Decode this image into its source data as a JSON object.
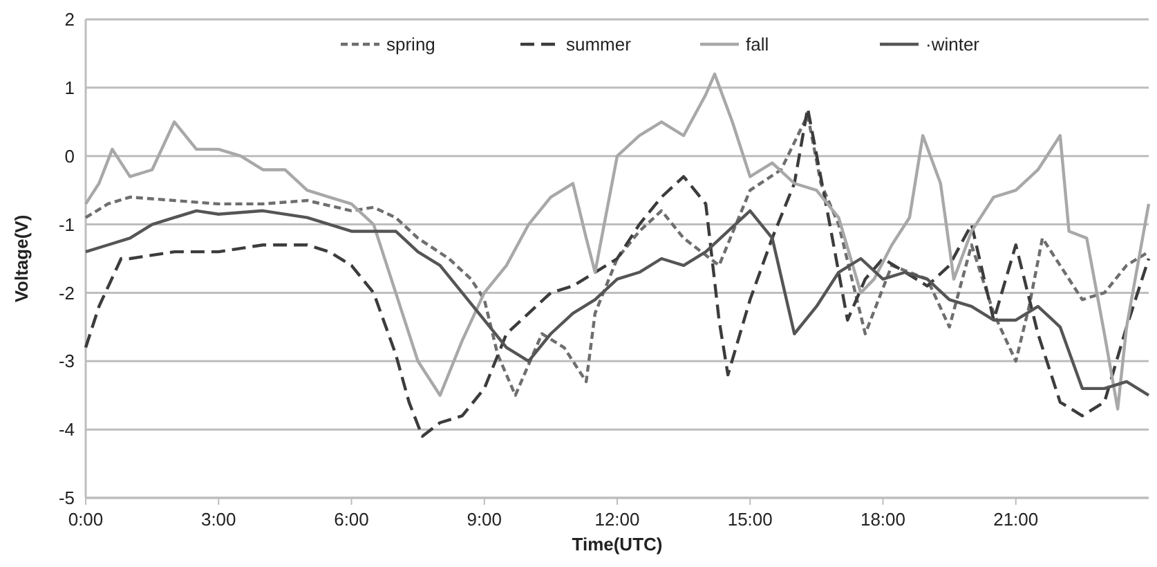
{
  "chart_data": {
    "type": "line",
    "xlabel": "Time(UTC)",
    "ylabel": "Voltage(V)",
    "xlim": [
      0,
      24
    ],
    "ylim": [
      -5,
      2
    ],
    "xticks": [
      {
        "value": 0,
        "label": "0:00"
      },
      {
        "value": 3,
        "label": "3:00"
      },
      {
        "value": 6,
        "label": "6:00"
      },
      {
        "value": 9,
        "label": "9:00"
      },
      {
        "value": 12,
        "label": "12:00"
      },
      {
        "value": 15,
        "label": "15:00"
      },
      {
        "value": 18,
        "label": "18:00"
      },
      {
        "value": 21,
        "label": "21:00"
      }
    ],
    "yticks": [
      -5,
      -4,
      -3,
      -2,
      -1,
      0,
      1,
      2
    ],
    "grid": "y",
    "legend": "top",
    "series": [
      {
        "name": "spring",
        "color": "#6e6e6e",
        "line_style": "dotted",
        "x": [
          0,
          0.5,
          1,
          2,
          3,
          4,
          5,
          6,
          6.5,
          7,
          7.5,
          8.2,
          8.7,
          9,
          9.3,
          9.7,
          10.3,
          10.8,
          11.3,
          11.5,
          12,
          12.5,
          13,
          13.5,
          14.3,
          15,
          15.7,
          16.3,
          16.6,
          17,
          17.3,
          17.6,
          18.2,
          19,
          19.5,
          20,
          20.5,
          21,
          21.3,
          21.6,
          22,
          22.5,
          23,
          23.5,
          24
        ],
        "values": [
          -0.9,
          -0.7,
          -0.6,
          -0.65,
          -0.7,
          -0.7,
          -0.65,
          -0.8,
          -0.75,
          -0.9,
          -1.2,
          -1.5,
          -1.8,
          -2.1,
          -2.9,
          -3.5,
          -2.6,
          -2.8,
          -3.3,
          -2.3,
          -1.5,
          -1.1,
          -0.8,
          -1.2,
          -1.6,
          -0.5,
          -0.2,
          0.6,
          -0.4,
          -1.0,
          -1.8,
          -2.6,
          -1.6,
          -1.8,
          -2.5,
          -1.3,
          -2.3,
          -3.0,
          -2.2,
          -1.2,
          -1.6,
          -2.1,
          -2.0,
          -1.6,
          -1.4
        ]
      },
      {
        "name": "summer",
        "color": "#3c3c3c",
        "line_style": "dashed",
        "x": [
          0,
          0.3,
          0.8,
          1,
          2,
          3,
          4,
          5,
          5.5,
          6,
          6.5,
          7,
          7.3,
          7.6,
          8,
          8.5,
          9,
          9.5,
          10,
          10.5,
          11,
          11.5,
          12,
          12.5,
          13,
          13.5,
          14,
          14.3,
          14.5,
          15,
          15.5,
          16,
          16.3,
          16.8,
          17.2,
          17.6,
          18,
          18.5,
          19,
          19.5,
          20,
          20.5,
          21,
          21.5,
          22,
          22.5,
          23,
          23.5,
          24
        ],
        "values": [
          -2.8,
          -2.2,
          -1.5,
          -1.5,
          -1.4,
          -1.4,
          -1.3,
          -1.3,
          -1.4,
          -1.6,
          -2.0,
          -2.9,
          -3.6,
          -4.1,
          -3.9,
          -3.8,
          -3.4,
          -2.6,
          -2.3,
          -2.0,
          -1.9,
          -1.7,
          -1.5,
          -1.0,
          -0.6,
          -0.3,
          -0.7,
          -2.4,
          -3.2,
          -2.1,
          -1.2,
          -0.4,
          0.7,
          -1.0,
          -2.4,
          -1.8,
          -1.5,
          -1.7,
          -1.9,
          -1.6,
          -1.0,
          -2.4,
          -1.3,
          -2.6,
          -3.6,
          -3.8,
          -3.6,
          -2.5,
          -1.5
        ]
      },
      {
        "name": "fall",
        "color": "#a8a8a8",
        "line_style": "solid",
        "x": [
          0,
          0.3,
          0.6,
          1,
          1.5,
          2,
          2.5,
          3,
          3.5,
          4,
          4.5,
          5,
          5.5,
          6,
          6.5,
          7,
          7.5,
          8,
          8.5,
          9,
          9.5,
          10,
          10.5,
          11,
          11.3,
          11.5,
          12,
          12.5,
          13,
          13.5,
          14,
          14.2,
          14.6,
          15,
          15.5,
          16,
          16.5,
          17,
          17.5,
          17.8,
          18.2,
          18.6,
          18.9,
          19.3,
          19.6,
          20,
          20.5,
          21,
          21.5,
          22,
          22.2,
          22.6,
          23,
          23.3,
          23.5,
          24
        ],
        "values": [
          -0.7,
          -0.4,
          0.1,
          -0.3,
          -0.2,
          0.5,
          0.1,
          0.1,
          0,
          -0.2,
          -0.2,
          -0.5,
          -0.6,
          -0.7,
          -1.0,
          -2.0,
          -3.0,
          -3.5,
          -2.7,
          -2.0,
          -1.6,
          -1.0,
          -0.6,
          -0.4,
          -1.2,
          -1.7,
          0,
          0.3,
          0.5,
          0.3,
          0.9,
          1.2,
          0.5,
          -0.3,
          -0.1,
          -0.4,
          -0.5,
          -0.9,
          -2.0,
          -1.8,
          -1.3,
          -0.9,
          0.3,
          -0.4,
          -1.8,
          -1.1,
          -0.6,
          -0.5,
          -0.2,
          0.3,
          -1.1,
          -1.2,
          -2.6,
          -3.7,
          -2.5,
          -0.7
        ]
      },
      {
        "name": "·winter",
        "color": "#555555",
        "line_style": "solid",
        "x": [
          0,
          0.5,
          1,
          1.5,
          2,
          2.5,
          3,
          4,
          5,
          6,
          6.5,
          7,
          7.5,
          8,
          8.5,
          9,
          9.5,
          10,
          10.5,
          11,
          11.5,
          12,
          12.5,
          13,
          13.5,
          14,
          14.5,
          15,
          15.5,
          16,
          16.5,
          17,
          17.5,
          18,
          18.5,
          19,
          19.5,
          20,
          20.5,
          21,
          21.5,
          22,
          22.5,
          23,
          23.5,
          24
        ],
        "values": [
          -1.4,
          -1.3,
          -1.2,
          -1.0,
          -0.9,
          -0.8,
          -0.85,
          -0.8,
          -0.9,
          -1.1,
          -1.1,
          -1.1,
          -1.4,
          -1.6,
          -2.0,
          -2.4,
          -2.8,
          -3.0,
          -2.6,
          -2.3,
          -2.1,
          -1.8,
          -1.7,
          -1.5,
          -1.6,
          -1.4,
          -1.1,
          -0.8,
          -1.2,
          -2.6,
          -2.2,
          -1.7,
          -1.5,
          -1.8,
          -1.7,
          -1.8,
          -2.1,
          -2.2,
          -2.4,
          -2.4,
          -2.2,
          -2.5,
          -3.4,
          -3.4,
          -3.3,
          -3.5
        ]
      }
    ]
  }
}
